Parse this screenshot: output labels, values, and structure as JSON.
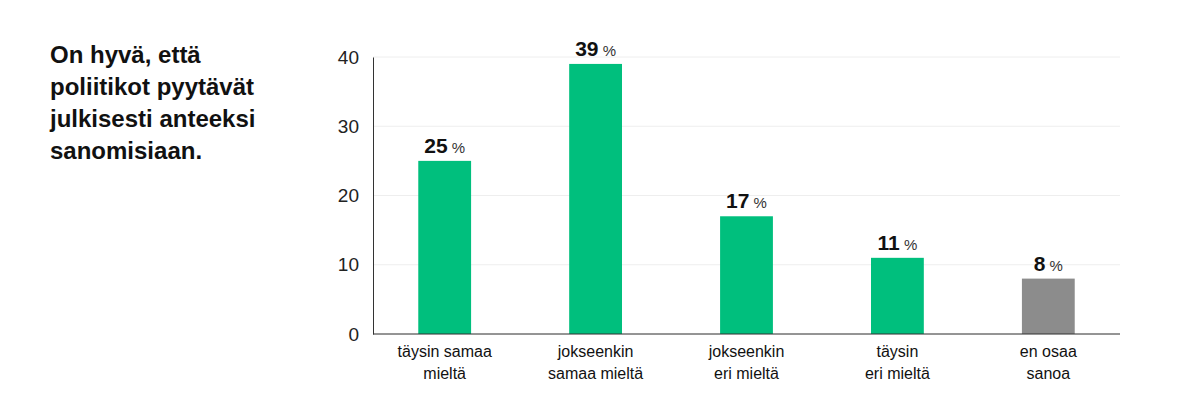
{
  "chart_data": {
    "type": "bar",
    "title": "On hyvä, että\npoliitikot pyytävät\njulkisesti anteeksi\nsanomisiaan.",
    "categories": [
      "täysin samaa\nmieltä",
      "jokseenkin\nsamaa mieltä",
      "jokseenkin\neri mieltä",
      "täysin\neri mieltä",
      "en osaa\nsanoa"
    ],
    "values": [
      25,
      39,
      17,
      11,
      8
    ],
    "value_labels": [
      "25 %",
      "39 %",
      "17 %",
      "11 %",
      "8 %"
    ],
    "colors": [
      "#00bf7d",
      "#00bf7d",
      "#00bf7d",
      "#00bf7d",
      "#8c8c8c"
    ],
    "ylim": [
      0,
      40
    ],
    "yticks": [
      0,
      10,
      20,
      30,
      40
    ],
    "grid": true,
    "data_labels": true
  }
}
